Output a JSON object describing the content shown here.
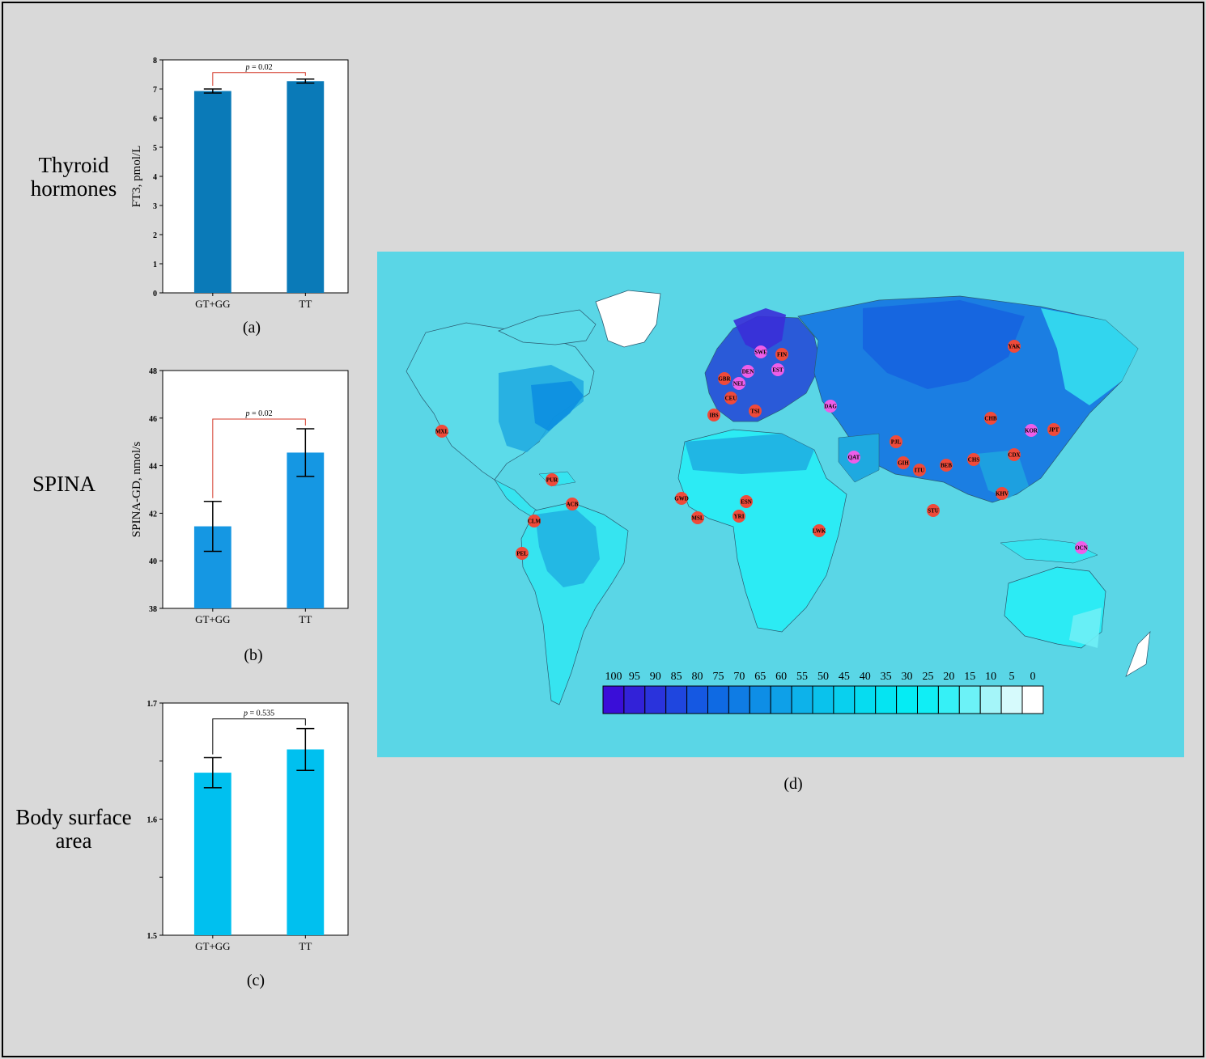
{
  "labels": {
    "thyroid": [
      "Thyroid",
      "hormones"
    ],
    "spina": "SPINA",
    "body": [
      "Body surface",
      "area"
    ]
  },
  "captions": {
    "a": "(a)",
    "b": "(b)",
    "c": "(c)",
    "d": "(d)"
  },
  "chart_data": [
    {
      "id": "a",
      "type": "bar",
      "title": "",
      "categories": [
        "GT+GG",
        "TT"
      ],
      "values": [
        6.93,
        7.27
      ],
      "errors": [
        0.07,
        0.07
      ],
      "ylabel": "FT3, pmol/L",
      "ylim": [
        0,
        8
      ],
      "yticks": [
        "0",
        "1",
        "2",
        "3",
        "4",
        "5",
        "6",
        "7",
        "8"
      ],
      "p_label": "p = 0.02",
      "color": "#0a7ab8",
      "bracket_color": "#d43a2a"
    },
    {
      "id": "b",
      "type": "bar",
      "title": "",
      "categories": [
        "GT+GG",
        "TT"
      ],
      "values": [
        41.45,
        44.55
      ],
      "errors": [
        1.05,
        1.0
      ],
      "ylabel": "SPINA-GD, nmol/s",
      "ylim": [
        38,
        48
      ],
      "yticks": [
        "38",
        "40",
        "42",
        "44",
        "46",
        "48"
      ],
      "p_label": "p = 0.02",
      "color": "#1597e3",
      "bracket_color": "#d43a2a"
    },
    {
      "id": "c",
      "type": "bar",
      "title": "",
      "categories": [
        "GT+GG",
        "TT"
      ],
      "values": [
        1.64,
        1.66
      ],
      "errors": [
        0.013,
        0.018
      ],
      "ylabel": "",
      "ylim": [
        1.5,
        1.7
      ],
      "yticks": [
        "1.5",
        "",
        "1.6",
        "",
        "1.7"
      ],
      "p_label": "p = 0.535",
      "color": "#00c0ef",
      "bracket_color": "#000000"
    }
  ],
  "map": {
    "legend_ticks": [
      "100",
      "95",
      "90",
      "85",
      "80",
      "75",
      "70",
      "65",
      "60",
      "55",
      "50",
      "45",
      "40",
      "35",
      "30",
      "25",
      "20",
      "15",
      "10",
      "5",
      "0"
    ],
    "legend_colors": [
      "#3a0ed8",
      "#3222d8",
      "#2a33dc",
      "#1f46df",
      "#1558e2",
      "#0f6ae3",
      "#0f7ce4",
      "#0e8ee6",
      "#0ea0e8",
      "#0db2ea",
      "#0ac2ec",
      "#09d0ee",
      "#06dcf0",
      "#05e4f2",
      "#05ecf4",
      "#10eef5",
      "#36f0f6",
      "#6cf2f7",
      "#a4f5f9",
      "#d6fafc",
      "#ffffff"
    ],
    "populations": [
      {
        "code": "SWE",
        "color": "#ee5ee8"
      },
      {
        "code": "FIN",
        "color": "#ef4a3a"
      },
      {
        "code": "DEN",
        "color": "#ee5ee8"
      },
      {
        "code": "EST",
        "color": "#ee5ee8"
      },
      {
        "code": "NEL",
        "color": "#ee5ee8"
      },
      {
        "code": "GBR",
        "color": "#ef4a3a"
      },
      {
        "code": "CEU",
        "color": "#ef4a3a"
      },
      {
        "code": "IBS",
        "color": "#ef4a3a"
      },
      {
        "code": "TSI",
        "color": "#ef4a3a"
      },
      {
        "code": "DAG",
        "color": "#ee5ee8"
      },
      {
        "code": "YAK",
        "color": "#ef4a3a"
      },
      {
        "code": "CHB",
        "color": "#ef4a3a"
      },
      {
        "code": "KOR",
        "color": "#ee5ee8"
      },
      {
        "code": "JPT",
        "color": "#ef4a3a"
      },
      {
        "code": "PJL",
        "color": "#ef4a3a"
      },
      {
        "code": "QAT",
        "color": "#ee5ee8"
      },
      {
        "code": "GIH",
        "color": "#ef4a3a"
      },
      {
        "code": "ITU",
        "color": "#ef4a3a"
      },
      {
        "code": "BEB",
        "color": "#ef4a3a"
      },
      {
        "code": "CHS",
        "color": "#ef4a3a"
      },
      {
        "code": "CDX",
        "color": "#ef4a3a"
      },
      {
        "code": "KHV",
        "color": "#ef4a3a"
      },
      {
        "code": "STU",
        "color": "#ef4a3a"
      },
      {
        "code": "OCN",
        "color": "#ee5ee8"
      },
      {
        "code": "MXL",
        "color": "#ef4a3a"
      },
      {
        "code": "PUR",
        "color": "#ef4a3a"
      },
      {
        "code": "ACB",
        "color": "#ef4a3a"
      },
      {
        "code": "CLM",
        "color": "#ef4a3a"
      },
      {
        "code": "PEL",
        "color": "#ef4a3a"
      },
      {
        "code": "GWD",
        "color": "#ef4a3a"
      },
      {
        "code": "MSL",
        "color": "#ef4a3a"
      },
      {
        "code": "ESN",
        "color": "#ef4a3a"
      },
      {
        "code": "YRI",
        "color": "#ef4a3a"
      },
      {
        "code": "LWK",
        "color": "#ef4a3a"
      }
    ]
  }
}
